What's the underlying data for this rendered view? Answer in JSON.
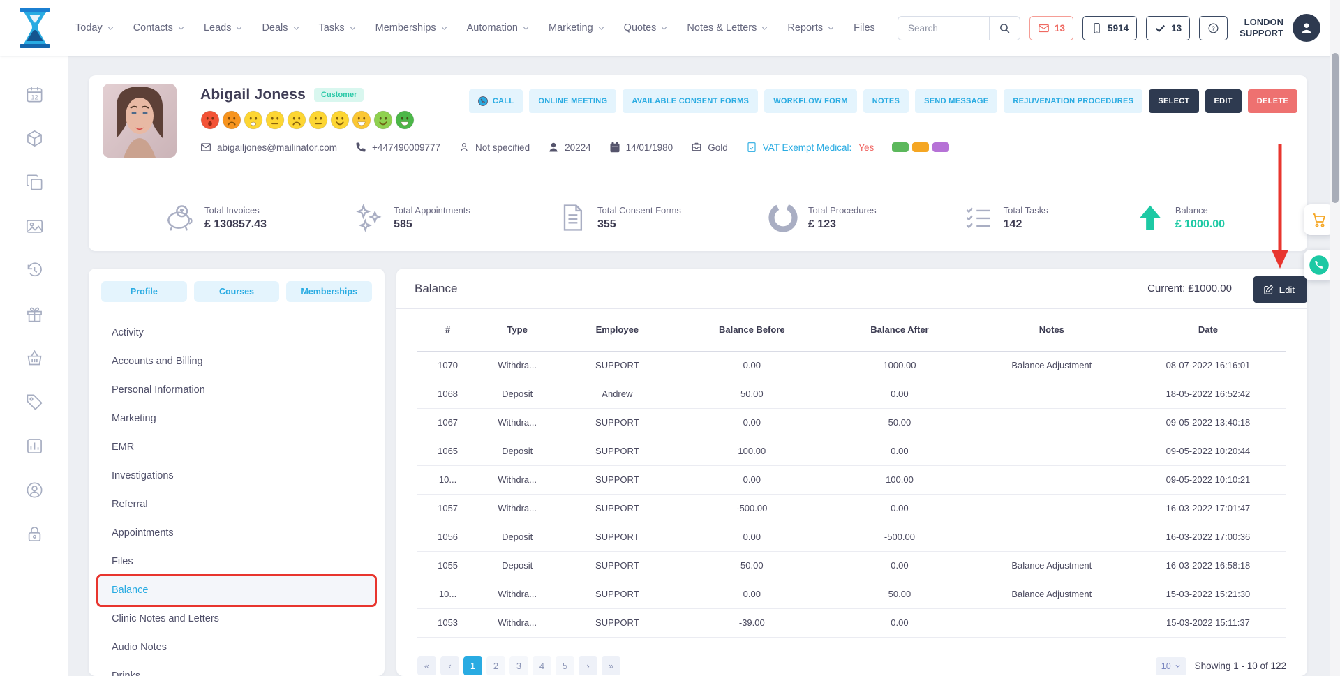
{
  "topbar": {
    "search_placeholder": "Search",
    "mail_count": "13",
    "phone_count": "5914",
    "task_count": "13",
    "user_name_line1": "LONDON",
    "user_name_line2": "SUPPORT"
  },
  "nav": {
    "items": [
      {
        "label": "Today",
        "caret": true
      },
      {
        "label": "Contacts",
        "caret": true
      },
      {
        "label": "Leads",
        "caret": true
      },
      {
        "label": "Deals",
        "caret": true
      },
      {
        "label": "Tasks",
        "caret": true
      },
      {
        "label": "Memberships",
        "caret": true
      },
      {
        "label": "Automation",
        "caret": true
      },
      {
        "label": "Marketing",
        "caret": true
      },
      {
        "label": "Quotes",
        "caret": true
      },
      {
        "label": "Notes & Letters",
        "caret": true
      },
      {
        "label": "Reports",
        "caret": true
      },
      {
        "label": "Files",
        "caret": false
      }
    ]
  },
  "leftrail": {
    "items": [
      "calendar",
      "cube",
      "copy",
      "photo",
      "history",
      "gift",
      "basket",
      "tag",
      "chart",
      "support",
      "lock"
    ],
    "calendar_day": "12"
  },
  "customer": {
    "name": "Abigail Joness",
    "badge": "Customer",
    "emojis": [
      {
        "color": "#f35336",
        "mouth": "open-frown"
      },
      {
        "color": "#f7941e",
        "mouth": "frown"
      },
      {
        "color": "#fdd633",
        "mouth": "worried"
      },
      {
        "color": "#fdd633",
        "mouth": "neutral"
      },
      {
        "color": "#fdd633",
        "mouth": "frown"
      },
      {
        "color": "#fdd633",
        "mouth": "neutral"
      },
      {
        "color": "#fdd633",
        "mouth": "smile"
      },
      {
        "color": "#fbc733",
        "mouth": "grin"
      },
      {
        "color": "#8fd14f",
        "mouth": "smile"
      },
      {
        "color": "#4cb748",
        "mouth": "grin"
      }
    ],
    "info": [
      {
        "icon": "envelope",
        "text": "abigailjones@mailinator.com"
      },
      {
        "icon": "phone",
        "text": "+447490009777"
      },
      {
        "icon": "person-outline",
        "text": "Not specified"
      },
      {
        "icon": "person",
        "text": "20224"
      },
      {
        "icon": "calendar-fill",
        "text": "14/01/1980"
      },
      {
        "icon": "membership",
        "text": "Gold"
      },
      {
        "icon": "document",
        "text": "VAT Exempt Medical:",
        "suffix": "Yes",
        "vat": true
      }
    ],
    "tags": [
      "#5cb85c",
      "#f5a623",
      "#b672d6"
    ]
  },
  "actions": [
    {
      "label": "CALL",
      "variant": "light",
      "icon": "phone-circle-blue"
    },
    {
      "label": "ONLINE MEETING",
      "variant": "light"
    },
    {
      "label": "AVAILABLE CONSENT FORMS",
      "variant": "light"
    },
    {
      "label": "WORKFLOW FORM",
      "variant": "light"
    },
    {
      "label": "NOTES",
      "variant": "light"
    },
    {
      "label": "SEND MESSAGE",
      "variant": "light"
    },
    {
      "label": "REJUVENATION PROCEDURES",
      "variant": "light"
    },
    {
      "label": "SELECT",
      "variant": "dark"
    },
    {
      "label": "EDIT",
      "variant": "dark"
    },
    {
      "label": "DELETE",
      "variant": "danger"
    }
  ],
  "stats": [
    {
      "icon": "piggy",
      "label": "Total Invoices",
      "value": "£ 130857.43"
    },
    {
      "icon": "sparkles",
      "label": "Total Appointments",
      "value": "585"
    },
    {
      "icon": "doc-lines",
      "label": "Total Consent Forms",
      "value": "355"
    },
    {
      "icon": "donut",
      "label": "Total Procedures",
      "value": "£ 123"
    },
    {
      "icon": "checklist",
      "label": "Total Tasks",
      "value": "142"
    },
    {
      "icon": "arrow-up",
      "label": "Balance",
      "value": "£ 1000.00",
      "accent": true
    }
  ],
  "sidebar": {
    "tabs": [
      "Profile",
      "Courses",
      "Memberships"
    ],
    "items": [
      "Activity",
      "Accounts and Billing",
      "Personal Information",
      "Marketing",
      "EMR",
      "Investigations",
      "Referral",
      "Appointments",
      "Files",
      "Balance",
      "Clinic Notes and Letters",
      "Audio Notes",
      "Drinks"
    ],
    "active": "Balance"
  },
  "panel": {
    "title": "Balance",
    "current_label": "Current: £1000.00",
    "edit_label": "Edit"
  },
  "table": {
    "headers": [
      "#",
      "Type",
      "Employee",
      "Balance Before",
      "Balance After",
      "Notes",
      "Date"
    ],
    "rows": [
      [
        "1070",
        "Withdra...",
        "SUPPORT",
        "0.00",
        "1000.00",
        "Balance Adjustment",
        "08-07-2022 16:16:01"
      ],
      [
        "1068",
        "Deposit",
        "Andrew",
        "50.00",
        "0.00",
        "",
        "18-05-2022 16:52:42"
      ],
      [
        "1067",
        "Withdra...",
        "SUPPORT",
        "0.00",
        "50.00",
        "",
        "09-05-2022 13:40:18"
      ],
      [
        "1065",
        "Deposit",
        "SUPPORT",
        "100.00",
        "0.00",
        "",
        "09-05-2022 10:20:44"
      ],
      [
        "10...",
        "Withdra...",
        "SUPPORT",
        "0.00",
        "100.00",
        "",
        "09-05-2022 10:10:21"
      ],
      [
        "1057",
        "Withdra...",
        "SUPPORT",
        "-500.00",
        "0.00",
        "",
        "16-03-2022 17:01:47"
      ],
      [
        "1056",
        "Deposit",
        "SUPPORT",
        "0.00",
        "-500.00",
        "",
        "16-03-2022 17:00:36"
      ],
      [
        "1055",
        "Deposit",
        "SUPPORT",
        "50.00",
        "0.00",
        "Balance Adjustment",
        "16-03-2022 16:58:18"
      ],
      [
        "10...",
        "Withdra...",
        "SUPPORT",
        "0.00",
        "50.00",
        "Balance Adjustment",
        "15-03-2022 15:21:30"
      ],
      [
        "1053",
        "Withdra...",
        "SUPPORT",
        "-39.00",
        "0.00",
        "",
        "15-03-2022 15:11:37"
      ]
    ]
  },
  "pagination": {
    "first": "«",
    "prev": "‹",
    "pages": [
      "1",
      "2",
      "3",
      "4",
      "5"
    ],
    "active": "1",
    "next": "›",
    "last": "»",
    "page_size": "10",
    "showing": "Showing 1 - 10 of 122"
  },
  "colors": {
    "accent": "#29abe2",
    "navy": "#2e3a50",
    "danger": "#ee7170",
    "teal": "#1dc9a4",
    "annotation": "#e8352e",
    "gold": "#f5a623"
  }
}
